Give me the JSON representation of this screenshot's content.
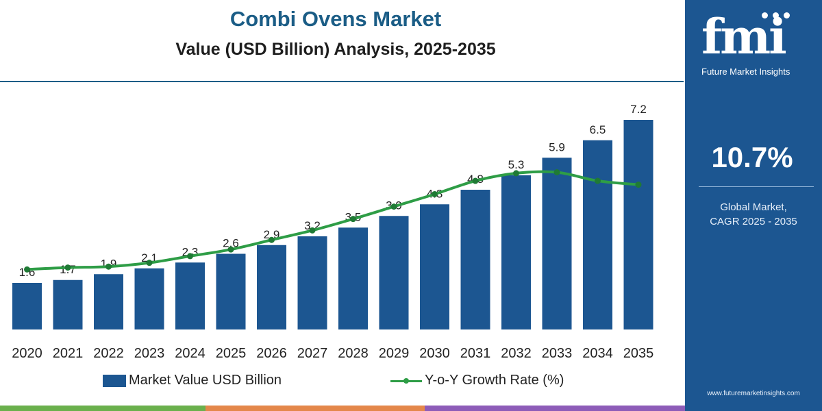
{
  "header": {
    "title": "Combi Ovens Market",
    "subtitle": "Value (USD Billion) Analysis, 2025-2035"
  },
  "chart_data": {
    "type": "bar",
    "categories": [
      "2020",
      "2021",
      "2022",
      "2023",
      "2024",
      "2025",
      "2026",
      "2027",
      "2028",
      "2029",
      "2030",
      "2031",
      "2032",
      "2033",
      "2034",
      "2035"
    ],
    "series": [
      {
        "name": "Market Value USD Billion",
        "type": "bar",
        "values": [
          1.6,
          1.7,
          1.9,
          2.1,
          2.3,
          2.6,
          2.9,
          3.2,
          3.5,
          3.9,
          4.3,
          4.8,
          5.3,
          5.9,
          6.5,
          7.2
        ],
        "labels": [
          "1.6",
          "1.7",
          "1.9",
          "2.1",
          "2.3",
          "2.6",
          "2.9",
          "3.2",
          "3.5",
          "3.9",
          "4.3",
          "4.8",
          "5.3",
          "5.9",
          "6.5",
          "7.2"
        ]
      },
      {
        "name": "Y-o-Y Growth Rate (%)",
        "type": "line",
        "values": [
          6.3,
          6.5,
          6.6,
          7.0,
          7.7,
          8.4,
          9.4,
          10.4,
          11.6,
          12.9,
          14.2,
          15.6,
          16.4,
          16.5,
          15.6,
          15.2
        ]
      }
    ],
    "ylim": [
      0,
      7.2
    ],
    "y2lim": [
      0,
      22
    ],
    "grid": false,
    "legend": "bottom",
    "colors": {
      "bar": "#1c5691",
      "line": "#2e9d46"
    }
  },
  "legend": {
    "bar_label": "Market Value USD Billion",
    "line_label": "Y-o-Y Growth Rate (%)"
  },
  "sidebar": {
    "logo_text": "fmi",
    "logo_caption": "Future Market Insights",
    "cagr_value": "10.7%",
    "cagr_label_line1": "Global Market,",
    "cagr_label_line2": "CAGR 2025 - 2035",
    "website": "www.futuremarketinsights.com"
  }
}
